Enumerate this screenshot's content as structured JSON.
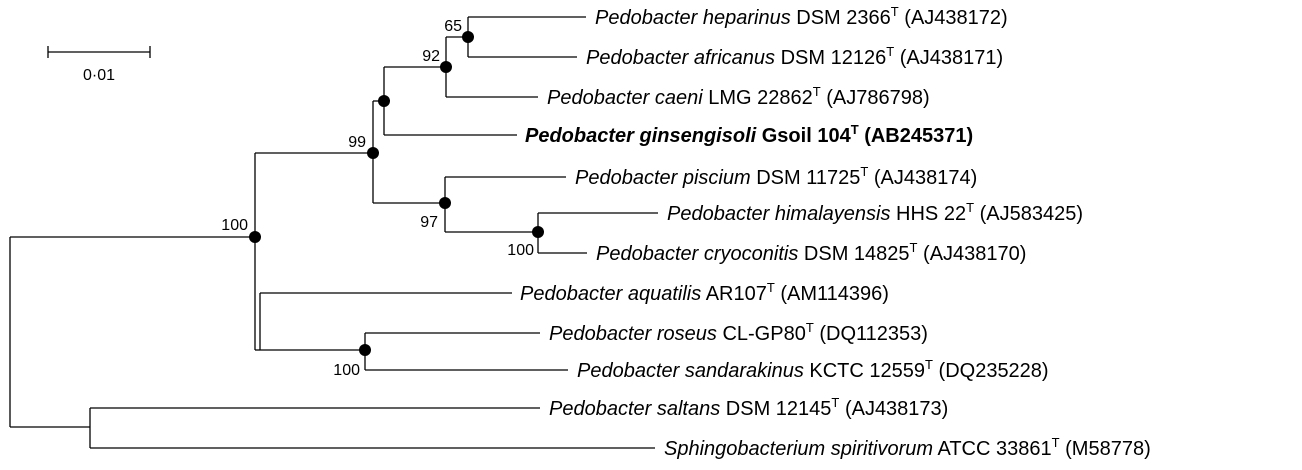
{
  "scale_bar": {
    "label": "0·01"
  },
  "taxa": [
    {
      "genus": "Pedobacter",
      "species": "heparinus",
      "strain": "DSM 2366",
      "type_mark": "T",
      "accession": "(AJ438172)",
      "bold": false
    },
    {
      "genus": "Pedobacter",
      "species": "africanus",
      "strain": "DSM 12126",
      "type_mark": "T",
      "accession": "(AJ438171)",
      "bold": false
    },
    {
      "genus": "Pedobacter",
      "species": "caeni",
      "strain": "LMG 22862",
      "type_mark": "T",
      "accession": "(AJ786798)",
      "bold": false
    },
    {
      "genus": "Pedobacter",
      "species": "ginsengisoli",
      "strain": "Gsoil 104",
      "type_mark": "T",
      "accession": "(AB245371)",
      "bold": true
    },
    {
      "genus": "Pedobacter",
      "species": "piscium",
      "strain": "DSM 11725",
      "type_mark": "T",
      "accession": "(AJ438174)",
      "bold": false
    },
    {
      "genus": "Pedobacter",
      "species": "himalayensis",
      "strain": "HHS 22",
      "type_mark": "T",
      "accession": "(AJ583425)",
      "bold": false
    },
    {
      "genus": "Pedobacter",
      "species": "cryoconitis",
      "strain": "DSM 14825",
      "type_mark": "T",
      "accession": "(AJ438170)",
      "bold": false
    },
    {
      "genus": "Pedobacter",
      "species": "aquatilis",
      "strain": "AR107",
      "type_mark": "T",
      "accession": "(AM114396)",
      "bold": false
    },
    {
      "genus": "Pedobacter",
      "species": "roseus",
      "strain": "CL-GP80",
      "type_mark": "T",
      "accession": "(DQ112353)",
      "bold": false
    },
    {
      "genus": "Pedobacter",
      "species": "sandarakinus",
      "strain": "KCTC 12559",
      "type_mark": "T",
      "accession": "(DQ235228)",
      "bold": false
    },
    {
      "genus": "Pedobacter",
      "species": "saltans",
      "strain": "DSM 12145",
      "type_mark": "T",
      "accession": "(AJ438173)",
      "bold": false
    },
    {
      "genus": "Sphingobacterium",
      "species": "spiritivorum",
      "strain": "ATCC 33861",
      "type_mark": "T",
      "accession": "(M58778)",
      "bold": false
    }
  ],
  "bootstrap": [
    {
      "node": "heparinus-africanus",
      "value": "65"
    },
    {
      "node": "heparinus-africanus-caeni",
      "value": "92"
    },
    {
      "node": "caeni-ginsengisoli-group",
      "value": "99"
    },
    {
      "node": "piscium-himalayensis-cryoconitis",
      "value": "97"
    },
    {
      "node": "himalayensis-cryoconitis",
      "value": "100"
    },
    {
      "node": "ingroup-root",
      "value": "100"
    },
    {
      "node": "roseus-sandarakinus",
      "value": "100"
    }
  ]
}
